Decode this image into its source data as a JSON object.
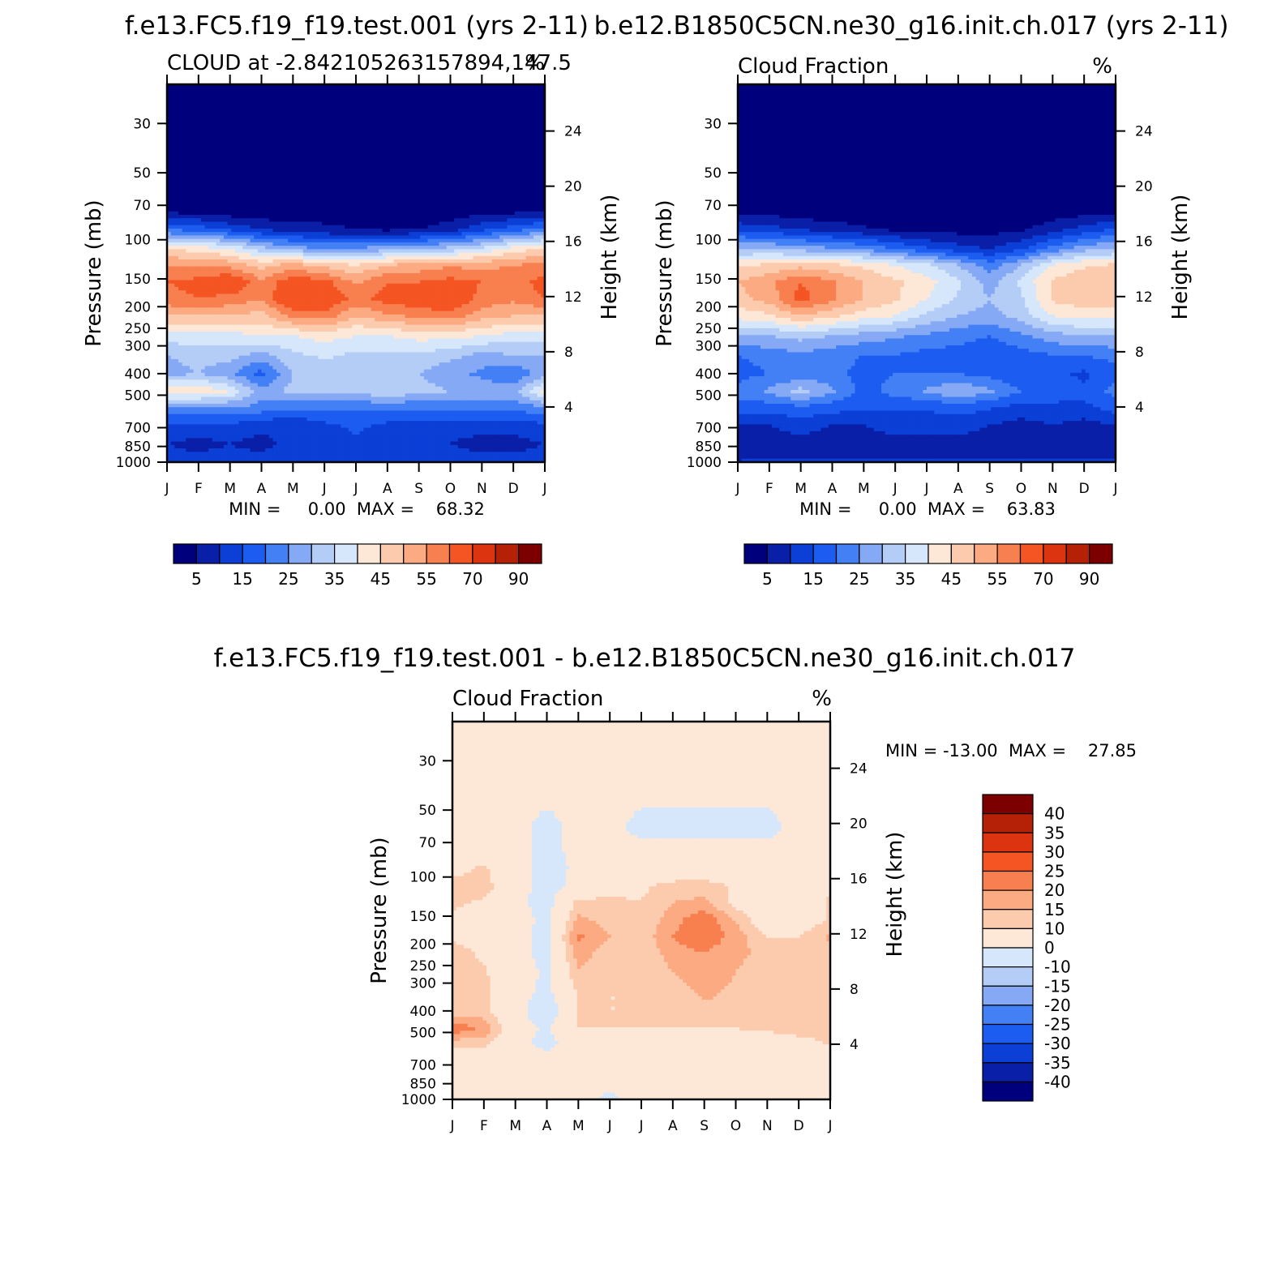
{
  "chart_data": [
    {
      "type": "heatmap",
      "title": "f.e13.FC5.f19_f19.test.001 (yrs 2-11)",
      "subtitle": "CLOUD at -2.842105263157894,147.5",
      "units": "%",
      "ylabel": "Pressure (mb)",
      "y2label": "Height (km)",
      "x_tick_labels": [
        "J",
        "F",
        "M",
        "A",
        "M",
        "J",
        "J",
        "A",
        "S",
        "O",
        "N",
        "D",
        "J"
      ],
      "y_ticks": [
        30,
        50,
        70,
        100,
        150,
        200,
        250,
        300,
        400,
        500,
        700,
        850,
        1000
      ],
      "y2_ticks": [
        24,
        20,
        16,
        12,
        8,
        4
      ],
      "ylim": [
        1000,
        20
      ],
      "y_scale": "log",
      "stats": "MIN =     0.00  MAX =    68.32",
      "colorbar_labels": [
        "5",
        "15",
        "25",
        "35",
        "45",
        "55",
        "70",
        "90"
      ],
      "levels": [
        5,
        10,
        15,
        20,
        25,
        30,
        35,
        40,
        45,
        50,
        55,
        60,
        70,
        80,
        90
      ],
      "colors": [
        "#00007d",
        "#0a1fa8",
        "#0b3fd6",
        "#1c5cf0",
        "#4480f5",
        "#86a9f5",
        "#b4cdf7",
        "#d6e7fb",
        "#fde8d8",
        "#fccaad",
        "#fbaa82",
        "#f87f4f",
        "#f45523",
        "#dc3410",
        "#b42107",
        "#7c0000"
      ],
      "x": [
        0,
        1,
        2,
        3,
        4,
        5,
        6,
        7,
        8,
        9,
        10,
        11,
        12
      ],
      "p": [
        25,
        40,
        60,
        75,
        90,
        110,
        130,
        155,
        185,
        220,
        270,
        330,
        400,
        480,
        560,
        680,
        830,
        970
      ],
      "z": [
        [
          0,
          0,
          0,
          0,
          0,
          0,
          0,
          0,
          0,
          0,
          0,
          0,
          0
        ],
        [
          0,
          0,
          0,
          0,
          0,
          0,
          0,
          0,
          0,
          0,
          0,
          0,
          0
        ],
        [
          0,
          0,
          0,
          0,
          0,
          0,
          0,
          0,
          0,
          0,
          0,
          0,
          0
        ],
        [
          4,
          4,
          2,
          1,
          2,
          3,
          3,
          2,
          1,
          2,
          3,
          4,
          5
        ],
        [
          20,
          18,
          14,
          10,
          8,
          6,
          5,
          4,
          5,
          8,
          14,
          18,
          22
        ],
        [
          45,
          43,
          40,
          32,
          28,
          25,
          26,
          28,
          30,
          32,
          36,
          42,
          46
        ],
        [
          55,
          54,
          53,
          48,
          52,
          48,
          45,
          50,
          52,
          54,
          53,
          55,
          56
        ],
        [
          60,
          62,
          66,
          56,
          64,
          62,
          54,
          60,
          60,
          62,
          60,
          58,
          62
        ],
        [
          58,
          60,
          58,
          55,
          68,
          65,
          58,
          62,
          64,
          66,
          58,
          56,
          60
        ],
        [
          50,
          50,
          50,
          48,
          56,
          58,
          50,
          54,
          56,
          58,
          52,
          50,
          50
        ],
        [
          38,
          38,
          38,
          40,
          40,
          42,
          40,
          40,
          42,
          42,
          40,
          38,
          38
        ],
        [
          30,
          32,
          32,
          28,
          34,
          36,
          34,
          34,
          34,
          32,
          28,
          30,
          30
        ],
        [
          28,
          30,
          26,
          18,
          30,
          32,
          31,
          32,
          30,
          26,
          24,
          20,
          28
        ],
        [
          44,
          44,
          40,
          26,
          32,
          32,
          32,
          34,
          32,
          30,
          28,
          28,
          42
        ],
        [
          26,
          26,
          26,
          24,
          22,
          22,
          22,
          22,
          22,
          22,
          22,
          22,
          26
        ],
        [
          14,
          14,
          14,
          12,
          10,
          14,
          16,
          14,
          12,
          12,
          12,
          12,
          14
        ],
        [
          10,
          8,
          10,
          8,
          12,
          12,
          14,
          12,
          12,
          10,
          8,
          8,
          10
        ],
        [
          12,
          12,
          12,
          12,
          12,
          12,
          12,
          12,
          12,
          12,
          12,
          12,
          12
        ]
      ]
    },
    {
      "type": "heatmap",
      "title": "b.e12.B1850C5CN.ne30_g16.init.ch.017 (yrs 2-11)",
      "subtitle": "Cloud Fraction",
      "units": "%",
      "ylabel": "Pressure (mb)",
      "y2label": "Height (km)",
      "x_tick_labels": [
        "J",
        "F",
        "M",
        "A",
        "M",
        "J",
        "J",
        "A",
        "S",
        "O",
        "N",
        "D",
        "J"
      ],
      "y_ticks": [
        30,
        50,
        70,
        100,
        150,
        200,
        250,
        300,
        400,
        500,
        700,
        850,
        1000
      ],
      "y2_ticks": [
        24,
        20,
        16,
        12,
        8,
        4
      ],
      "ylim": [
        1000,
        20
      ],
      "y_scale": "log",
      "stats": "MIN =     0.00  MAX =    63.83",
      "colorbar_labels": [
        "5",
        "15",
        "25",
        "35",
        "45",
        "55",
        "70",
        "90"
      ],
      "levels": [
        5,
        10,
        15,
        20,
        25,
        30,
        35,
        40,
        45,
        50,
        55,
        60,
        70,
        80,
        90
      ],
      "colors": [
        "#00007d",
        "#0a1fa8",
        "#0b3fd6",
        "#1c5cf0",
        "#4480f5",
        "#86a9f5",
        "#b4cdf7",
        "#d6e7fb",
        "#fde8d8",
        "#fccaad",
        "#fbaa82",
        "#f87f4f",
        "#f45523",
        "#dc3410",
        "#b42107",
        "#7c0000"
      ],
      "x": [
        0,
        1,
        2,
        3,
        4,
        5,
        6,
        7,
        8,
        9,
        10,
        11,
        12
      ],
      "p": [
        25,
        40,
        60,
        75,
        90,
        110,
        130,
        155,
        185,
        220,
        270,
        330,
        400,
        480,
        560,
        680,
        830,
        970
      ],
      "z": [
        [
          0,
          0,
          0,
          0,
          0,
          0,
          0,
          0,
          0,
          0,
          0,
          0,
          0
        ],
        [
          0,
          0,
          0,
          0,
          0,
          0,
          0,
          0,
          0,
          0,
          0,
          0,
          0
        ],
        [
          0,
          0,
          0,
          0,
          0,
          0,
          0,
          0,
          0,
          0,
          0,
          0,
          0
        ],
        [
          3,
          3,
          2,
          1,
          1,
          1,
          1,
          1,
          1,
          1,
          2,
          3,
          3
        ],
        [
          14,
          12,
          10,
          8,
          6,
          4,
          3,
          3,
          3,
          4,
          8,
          12,
          16
        ],
        [
          30,
          30,
          28,
          26,
          24,
          20,
          16,
          12,
          10,
          14,
          22,
          28,
          30
        ],
        [
          44,
          46,
          48,
          46,
          44,
          40,
          36,
          30,
          22,
          30,
          40,
          44,
          46
        ],
        [
          50,
          54,
          60,
          56,
          50,
          46,
          42,
          36,
          28,
          36,
          46,
          50,
          50
        ],
        [
          48,
          52,
          62,
          56,
          50,
          46,
          40,
          34,
          30,
          34,
          46,
          48,
          48
        ],
        [
          42,
          44,
          50,
          46,
          42,
          40,
          34,
          30,
          28,
          32,
          40,
          42,
          42
        ],
        [
          30,
          30,
          32,
          30,
          28,
          26,
          24,
          22,
          20,
          24,
          28,
          30,
          30
        ],
        [
          20,
          22,
          24,
          22,
          20,
          20,
          18,
          18,
          16,
          18,
          20,
          20,
          22
        ],
        [
          18,
          20,
          22,
          22,
          18,
          20,
          20,
          20,
          18,
          16,
          16,
          14,
          18
        ],
        [
          22,
          26,
          32,
          26,
          18,
          22,
          26,
          30,
          26,
          20,
          18,
          16,
          22
        ],
        [
          18,
          18,
          20,
          18,
          16,
          16,
          16,
          18,
          16,
          14,
          14,
          14,
          18
        ],
        [
          10,
          10,
          12,
          10,
          10,
          12,
          12,
          12,
          10,
          8,
          10,
          8,
          10
        ],
        [
          8,
          8,
          8,
          8,
          8,
          8,
          8,
          8,
          8,
          8,
          8,
          6,
          8
        ],
        [
          10,
          10,
          10,
          10,
          10,
          10,
          10,
          10,
          10,
          10,
          10,
          10,
          10
        ]
      ]
    },
    {
      "type": "heatmap",
      "title": "f.e13.FC5.f19_f19.test.001 - b.e12.B1850C5CN.ne30_g16.init.ch.017",
      "subtitle": "Cloud Fraction",
      "units": "%",
      "ylabel": "Pressure (mb)",
      "y2label": "Height (km)",
      "x_tick_labels": [
        "J",
        "F",
        "M",
        "A",
        "M",
        "J",
        "J",
        "A",
        "S",
        "O",
        "N",
        "D",
        "J"
      ],
      "y_ticks": [
        30,
        50,
        70,
        100,
        150,
        200,
        250,
        300,
        400,
        500,
        700,
        850,
        1000
      ],
      "y2_ticks": [
        24,
        20,
        16,
        12,
        8,
        4
      ],
      "ylim": [
        1000,
        20
      ],
      "y_scale": "log",
      "stats": "MIN = -13.00  MAX =    27.85",
      "colorbar_labels": [
        "40",
        "35",
        "30",
        "25",
        "20",
        "15",
        "10",
        "0",
        "-10",
        "-15",
        "-20",
        "-25",
        "-30",
        "-35",
        "-40"
      ],
      "levels": [
        -40,
        -35,
        -30,
        -25,
        -20,
        -15,
        -10,
        0,
        10,
        15,
        20,
        25,
        30,
        35,
        40
      ],
      "colors": [
        "#00007d",
        "#0a1fa8",
        "#0b3fd6",
        "#1c5cf0",
        "#4480f5",
        "#86a9f5",
        "#b4cdf7",
        "#d6e7fb",
        "#fde8d8",
        "#fccaad",
        "#fbaa82",
        "#f87f4f",
        "#f45523",
        "#dc3410",
        "#b42107",
        "#7c0000"
      ],
      "x": [
        0,
        1,
        2,
        3,
        4,
        5,
        6,
        7,
        8,
        9,
        10,
        11,
        12
      ],
      "p": [
        25,
        40,
        60,
        75,
        90,
        110,
        130,
        155,
        185,
        220,
        270,
        330,
        400,
        480,
        560,
        680,
        830,
        970
      ],
      "z": [
        [
          1,
          1,
          1,
          1,
          1,
          1,
          1,
          1,
          1,
          1,
          1,
          1,
          1
        ],
        [
          1,
          1,
          1,
          1,
          1,
          1,
          1,
          1,
          1,
          1,
          1,
          1,
          1
        ],
        [
          1,
          1,
          1,
          -1,
          1,
          1,
          -1,
          -1,
          -1,
          -1,
          -1,
          1,
          1
        ],
        [
          1,
          1,
          1,
          -1,
          1,
          1,
          1,
          1,
          1,
          1,
          1,
          1,
          1
        ],
        [
          6,
          11,
          2,
          -2,
          1,
          1,
          3,
          4,
          4,
          2,
          1,
          1,
          4
        ],
        [
          14,
          13,
          3,
          -3,
          2,
          5,
          9,
          12,
          13,
          9,
          2,
          1,
          8
        ],
        [
          11,
          9,
          2,
          -3,
          12,
          12,
          10,
          15,
          16,
          8,
          2,
          1,
          12
        ],
        [
          9,
          7,
          3,
          -2,
          16,
          13,
          10,
          18,
          24,
          14,
          5,
          4,
          11
        ],
        [
          9,
          8,
          2,
          -2,
          21,
          15,
          12,
          20,
          24,
          18,
          10,
          10,
          16
        ],
        [
          12,
          9,
          2,
          -2,
          18,
          12,
          10,
          18,
          20,
          16,
          14,
          12,
          14
        ],
        [
          12,
          11,
          3,
          -1,
          14,
          11,
          10,
          15,
          18,
          15,
          12,
          12,
          13
        ],
        [
          12,
          12,
          3,
          -2,
          11,
          10,
          10,
          12,
          16,
          14,
          11,
          12,
          12
        ],
        [
          12,
          12,
          3,
          -6,
          10,
          10,
          10,
          11,
          14,
          13,
          12,
          10,
          12
        ],
        [
          24,
          19,
          3,
          -1,
          10,
          10,
          10,
          10,
          10,
          10,
          11,
          15,
          15
        ],
        [
          12,
          12,
          3,
          -3,
          5,
          5,
          5,
          5,
          5,
          5,
          5,
          5,
          11
        ],
        [
          5,
          5,
          5,
          5,
          5,
          5,
          5,
          5,
          5,
          5,
          5,
          5,
          5
        ],
        [
          5,
          5,
          5,
          5,
          5,
          5,
          5,
          5,
          5,
          5,
          5,
          5,
          5
        ],
        [
          5,
          5,
          5,
          5,
          5,
          -2,
          5,
          5,
          5,
          5,
          5,
          5,
          5
        ]
      ]
    }
  ]
}
